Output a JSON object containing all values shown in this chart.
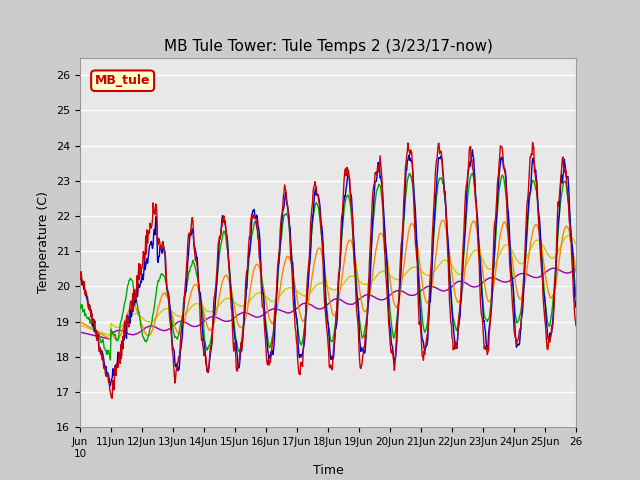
{
  "title": "MB Tule Tower: Tule Temps 2 (3/23/17-now)",
  "xlabel": "Time",
  "ylabel": "Temperature (C)",
  "ylim": [
    16.0,
    26.5
  ],
  "yticks": [
    16.0,
    17.0,
    18.0,
    19.0,
    20.0,
    21.0,
    22.0,
    23.0,
    24.0,
    25.0,
    26.0
  ],
  "series_colors": {
    "Tul2_Tw+2": "#cc0000",
    "Tul2_Ts-2": "#0000cc",
    "Tul2_Ts-4": "#00aa00",
    "Tul2_Ts-8": "#ff8800",
    "Tul2_Ts-16": "#cccc00",
    "Tul2_Ts-32": "#9900aa"
  },
  "legend_label": "MB_tule",
  "legend_label_color": "#cc0000",
  "fig_bg": "#cccccc",
  "plot_bg": "#e8e8e8",
  "grid_color": "#ffffff"
}
